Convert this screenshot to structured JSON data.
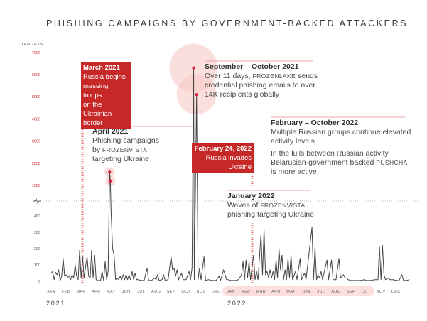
{
  "title": "PHISHING CAMPAIGNS BY GOVERNMENT-BACKED ATTACKERS",
  "colors": {
    "accent": "#c62828",
    "line": "#444444",
    "circle": "#f6c9c7",
    "band": "#fde0de",
    "rule": "#e8a9a5"
  },
  "annotations": {
    "march2021": {
      "heading": "March 2021",
      "lines": [
        "Russia begins",
        "massing troops",
        "on the Ukrainian",
        "border"
      ]
    },
    "april2021": {
      "heading": "April 2021",
      "line1": "Phishing campaigns",
      "line2_pre": "by ",
      "line2_group": "FROZENVISTA",
      "line3": "targeting Ukraine"
    },
    "sepoct2021": {
      "heading": "September – October 2021",
      "line1_pre": "Over 11 days, ",
      "line1_group": "FROZENLAKE",
      "line1_post": " sends",
      "line2": "credential phishing emails to over",
      "line3": "14K recipients globally"
    },
    "feb2022": {
      "heading": "February 24, 2022",
      "line1": "Russia invades Ukraine"
    },
    "febOct2022": {
      "heading": "February – October 2022",
      "line1": "Multiple Russian groups continue elevated",
      "line2": "activity levels",
      "line3": "In the lulls between Russian activity,",
      "line4_pre": "Belarusian-government backed ",
      "line4_group": "PUSHCHA",
      "line5": "is more active"
    },
    "jan2022": {
      "heading": "January 2022",
      "line1_pre": "Waves of ",
      "line1_group": "FROZENVISTA",
      "line2": "phishing targeting Ukraine"
    }
  },
  "chart_data": {
    "type": "line",
    "title": "PHISHING CAMPAIGNS BY GOVERNMENT-BACKED ATTACKERS",
    "ylabel": "TARGETS",
    "xlabel": "",
    "y_upper_ticks": [
      1000,
      2000,
      3000,
      4000,
      5000,
      6000,
      7000
    ],
    "y_lower_ticks": [
      0,
      100,
      200,
      300,
      400
    ],
    "ylim_lower": [
      0,
      420
    ],
    "ylim_upper": [
      1000,
      7000
    ],
    "axis_break": "broken axis between 420 and 1000",
    "grid": false,
    "x_ticks": [
      "JAN",
      "FEB",
      "MAR",
      "APR",
      "MAY",
      "JUN",
      "JUL",
      "AUG",
      "SEP",
      "OCT",
      "NOV",
      "DEC",
      "JAN",
      "FEB",
      "MAR",
      "APR",
      "MAY",
      "JUN",
      "JUL",
      "AUG",
      "SEP",
      "OCT",
      "NOV",
      "DEC"
    ],
    "years": [
      "2021",
      "2022"
    ],
    "highlight_range": "JAN 2022 – OCT 2022",
    "series": [
      {
        "name": "Targets",
        "points": [
          [
            0.0,
            50
          ],
          [
            0.1,
            60
          ],
          [
            0.2,
            10
          ],
          [
            0.3,
            55
          ],
          [
            0.4,
            40
          ],
          [
            0.5,
            70
          ],
          [
            0.6,
            5
          ],
          [
            0.7,
            30
          ],
          [
            0.8,
            140
          ],
          [
            0.9,
            30
          ],
          [
            1.0,
            40
          ],
          [
            1.1,
            20
          ],
          [
            1.2,
            35
          ],
          [
            1.3,
            10
          ],
          [
            1.4,
            40
          ],
          [
            1.5,
            20
          ],
          [
            1.6,
            100
          ],
          [
            1.7,
            30
          ],
          [
            1.8,
            10
          ],
          [
            1.9,
            190
          ],
          [
            2.0,
            20
          ],
          [
            2.1,
            150
          ],
          [
            2.2,
            20
          ],
          [
            2.3,
            90
          ],
          [
            2.4,
            150
          ],
          [
            2.5,
            30
          ],
          [
            2.6,
            20
          ],
          [
            2.7,
            190
          ],
          [
            2.8,
            20
          ],
          [
            2.9,
            160
          ],
          [
            3.0,
            10
          ],
          [
            3.1,
            5
          ],
          [
            3.2,
            5
          ],
          [
            3.3,
            5
          ],
          [
            3.4,
            60
          ],
          [
            3.5,
            5
          ],
          [
            3.6,
            120
          ],
          [
            3.7,
            10
          ],
          [
            3.8,
            60
          ],
          [
            3.9,
            1600
          ],
          [
            3.95,
            1200
          ],
          [
            4.0,
            420
          ],
          [
            4.1,
            200
          ],
          [
            4.2,
            160
          ],
          [
            4.3,
            10
          ],
          [
            4.4,
            20
          ],
          [
            4.5,
            10
          ],
          [
            4.6,
            30
          ],
          [
            4.7,
            10
          ],
          [
            4.8,
            40
          ],
          [
            4.9,
            10
          ],
          [
            5.0,
            40
          ],
          [
            5.1,
            10
          ],
          [
            5.2,
            40
          ],
          [
            5.3,
            10
          ],
          [
            5.4,
            60
          ],
          [
            5.5,
            10
          ],
          [
            5.6,
            50
          ],
          [
            5.7,
            10
          ],
          [
            5.8,
            10
          ],
          [
            6.0,
            5
          ],
          [
            6.2,
            5
          ],
          [
            6.4,
            80
          ],
          [
            6.5,
            5
          ],
          [
            6.7,
            5
          ],
          [
            6.9,
            20
          ],
          [
            7.0,
            10
          ],
          [
            7.1,
            40
          ],
          [
            7.2,
            5
          ],
          [
            7.4,
            10
          ],
          [
            7.5,
            40
          ],
          [
            7.6,
            5
          ],
          [
            7.8,
            10
          ],
          [
            8.0,
            150
          ],
          [
            8.1,
            70
          ],
          [
            8.2,
            80
          ],
          [
            8.3,
            30
          ],
          [
            8.4,
            70
          ],
          [
            8.5,
            10
          ],
          [
            8.7,
            50
          ],
          [
            8.8,
            10
          ],
          [
            9.0,
            10
          ],
          [
            9.2,
            60
          ],
          [
            9.3,
            10
          ],
          [
            9.4,
            80
          ],
          [
            9.5,
            6300
          ],
          [
            9.55,
            10
          ],
          [
            9.7,
            5100
          ],
          [
            9.8,
            10
          ],
          [
            9.9,
            80
          ],
          [
            10.0,
            10
          ],
          [
            10.2,
            150
          ],
          [
            10.3,
            5
          ],
          [
            10.5,
            10
          ],
          [
            10.7,
            5
          ],
          [
            11.0,
            5
          ],
          [
            11.2,
            30
          ],
          [
            11.3,
            5
          ],
          [
            11.5,
            70
          ],
          [
            11.6,
            40
          ],
          [
            11.7,
            10
          ],
          [
            11.8,
            10
          ],
          [
            12.0,
            5
          ],
          [
            12.3,
            5
          ],
          [
            12.5,
            10
          ],
          [
            12.7,
            40
          ],
          [
            12.8,
            120
          ],
          [
            12.9,
            10
          ],
          [
            13.0,
            130
          ],
          [
            13.1,
            20
          ],
          [
            13.2,
            120
          ],
          [
            13.3,
            10
          ],
          [
            13.5,
            160
          ],
          [
            13.6,
            10
          ],
          [
            13.7,
            60
          ],
          [
            13.8,
            10
          ],
          [
            14.0,
            290
          ],
          [
            14.1,
            40
          ],
          [
            14.2,
            320
          ],
          [
            14.3,
            40
          ],
          [
            14.4,
            60
          ],
          [
            14.5,
            20
          ],
          [
            14.6,
            70
          ],
          [
            14.7,
            20
          ],
          [
            14.8,
            60
          ],
          [
            14.9,
            10
          ],
          [
            15.0,
            130
          ],
          [
            15.1,
            20
          ],
          [
            15.2,
            200
          ],
          [
            15.3,
            70
          ],
          [
            15.4,
            160
          ],
          [
            15.5,
            10
          ],
          [
            15.6,
            70
          ],
          [
            15.7,
            10
          ],
          [
            15.8,
            140
          ],
          [
            15.9,
            20
          ],
          [
            16.0,
            160
          ],
          [
            16.1,
            10
          ],
          [
            16.3,
            60
          ],
          [
            16.4,
            10
          ],
          [
            16.6,
            140
          ],
          [
            16.7,
            10
          ],
          [
            16.9,
            50
          ],
          [
            17.0,
            10
          ],
          [
            17.4,
            330
          ],
          [
            17.5,
            10
          ],
          [
            17.6,
            210
          ],
          [
            17.7,
            10
          ],
          [
            17.8,
            40
          ],
          [
            17.9,
            20
          ],
          [
            18.0,
            60
          ],
          [
            18.1,
            10
          ],
          [
            18.4,
            130
          ],
          [
            18.5,
            10
          ],
          [
            18.7,
            130
          ],
          [
            18.8,
            10
          ],
          [
            19.0,
            10
          ],
          [
            19.2,
            140
          ],
          [
            19.3,
            20
          ],
          [
            19.5,
            40
          ],
          [
            19.6,
            20
          ],
          [
            19.7,
            20
          ],
          [
            19.8,
            10
          ],
          [
            20.0,
            5
          ],
          [
            20.3,
            5
          ],
          [
            20.6,
            5
          ],
          [
            20.9,
            10
          ],
          [
            21.0,
            5
          ],
          [
            21.3,
            5
          ],
          [
            21.6,
            10
          ],
          [
            21.8,
            10
          ],
          [
            21.9,
            210
          ],
          [
            22.0,
            10
          ],
          [
            22.1,
            220
          ],
          [
            22.2,
            40
          ],
          [
            22.3,
            10
          ],
          [
            22.5,
            20
          ],
          [
            22.6,
            10
          ],
          [
            22.8,
            10
          ],
          [
            23.0,
            5
          ],
          [
            23.2,
            5
          ],
          [
            23.4,
            40
          ],
          [
            23.5,
            5
          ],
          [
            23.7,
            5
          ],
          [
            23.9,
            10
          ]
        ]
      }
    ]
  }
}
